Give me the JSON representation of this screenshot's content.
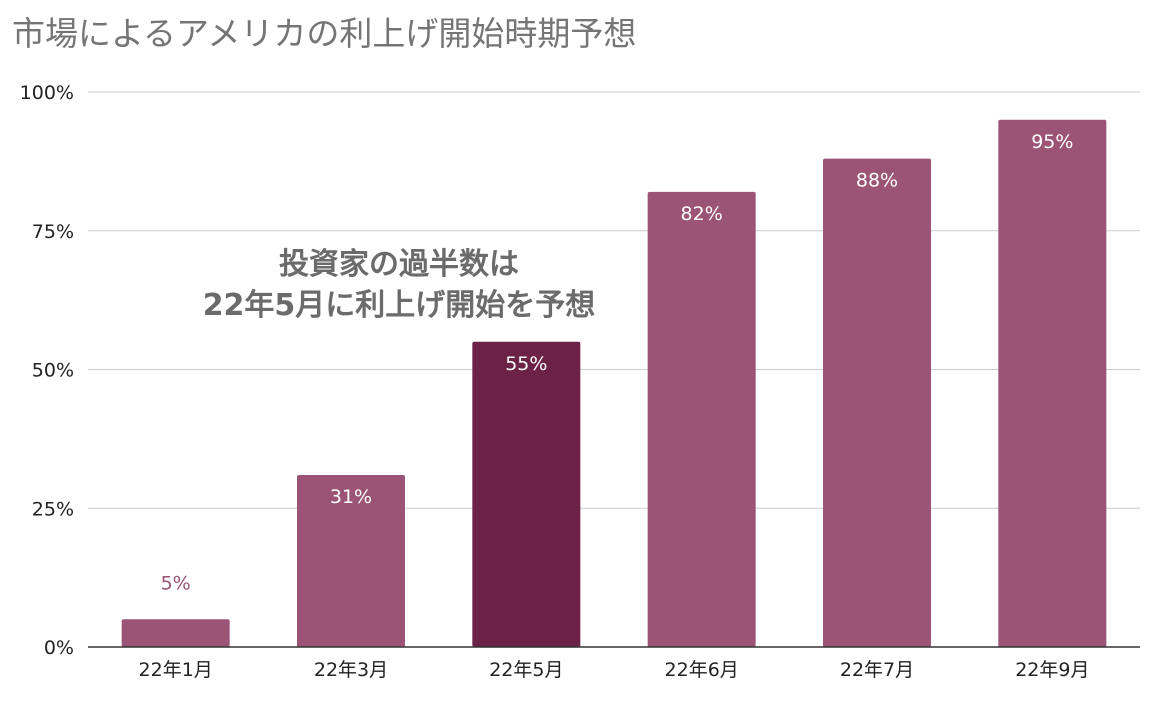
{
  "chart_data": {
    "type": "bar",
    "title": "市場によるアメリカの利上げ開始時期予想",
    "xlabel": "",
    "ylabel": "",
    "categories": [
      "22年1月",
      "22年3月",
      "22年5月",
      "22年6月",
      "22年7月",
      "22年9月"
    ],
    "values": [
      5,
      31,
      55,
      82,
      88,
      95
    ],
    "data_labels": [
      "5%",
      "31%",
      "55%",
      "82%",
      "88%",
      "95%"
    ],
    "ylim": [
      0,
      100
    ],
    "y_ticks": [
      0,
      25,
      50,
      75,
      100
    ],
    "y_tick_labels": [
      "0%",
      "25%",
      "50%",
      "75%",
      "100%"
    ],
    "grid": true,
    "legend": "none",
    "annotation": {
      "line1": "投資家の過半数は",
      "line2": "22年5月に利上げ開始を予想"
    },
    "highlight_index": 2,
    "colors": {
      "bar": "#9b5475",
      "highlight": "#6c2247",
      "grid": "#cccccc",
      "axis": "#333333",
      "label_inside": "#ffffff",
      "label_outside": "#9b5475"
    }
  }
}
